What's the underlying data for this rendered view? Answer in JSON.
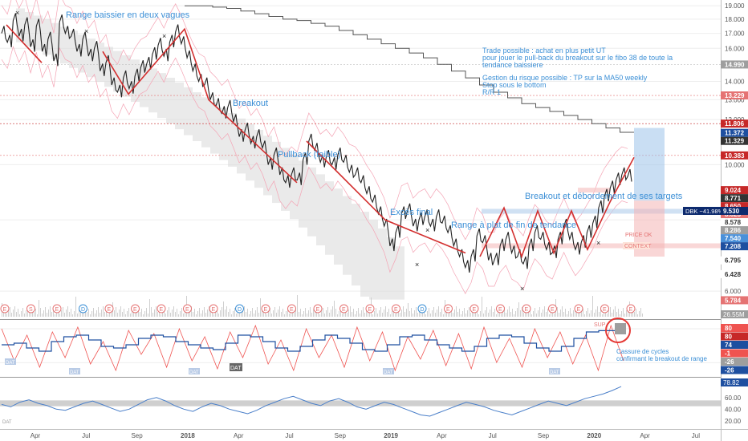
{
  "chart_data": [
    {
      "type": "line",
      "panel": "price",
      "series_name": "DBK",
      "change_label": "DBK −41.98%",
      "current_price": "9.530",
      "ylim": [
        5.5,
        19.2
      ],
      "yticks": [
        "19.000",
        "18.000",
        "17.000",
        "16.000",
        "14.000",
        "13.000",
        "12.000",
        "10.000",
        "8.000",
        "6.000"
      ],
      "x_labels": [
        "Apr",
        "Jul",
        "Sep",
        "2018",
        "Apr",
        "Jul",
        "Sep",
        "2019",
        "Apr",
        "Jul",
        "Sep",
        "2020",
        "Apr",
        "Jul"
      ],
      "price_tags": [
        {
          "label": "14.990",
          "color": "#9e9e9e",
          "value": 14.99
        },
        {
          "label": "13.229",
          "color": "#e57373",
          "value": 13.229
        },
        {
          "label": "11.806",
          "color": "#c62828",
          "value": 11.806
        },
        {
          "label": "11.372",
          "color": "#1e4fa0",
          "value": 11.372
        },
        {
          "label": "11.329",
          "color": "#333333",
          "value": 11.329
        },
        {
          "label": "10.383",
          "color": "#c62828",
          "value": 10.383
        },
        {
          "label": "9.024",
          "color": "#c62828",
          "value": 9.024
        },
        {
          "label": "8.771",
          "color": "#333333",
          "value": 8.771
        },
        {
          "label": "8.650",
          "color": "#c62828",
          "value": 8.65
        },
        {
          "label": "8.623",
          "color": "#e57373",
          "value": 8.623
        },
        {
          "label": "8.578",
          "color": "#ffffff",
          "value": 8.578
        },
        {
          "label": "8.286",
          "color": "#9e9e9e",
          "value": 8.286
        },
        {
          "label": "7.540",
          "color": "#4a90d9",
          "value": 7.54
        },
        {
          "label": "7.208",
          "color": "#1e4fa0",
          "value": 7.208
        },
        {
          "label": "6.795",
          "color": "#ffffff",
          "value": 6.795
        },
        {
          "label": "6.428",
          "color": "#ffffff",
          "value": 6.428
        },
        {
          "label": "5.784",
          "color": "#e57373",
          "value": 5.784
        }
      ],
      "volume_tag": "26.55M",
      "close_values": [
        17.0,
        16.4,
        17.9,
        16.8,
        17.6,
        16.1,
        17.5,
        15.8,
        16.6,
        15.2,
        17.8,
        17.0,
        16.8,
        15.8,
        16.6,
        15.5,
        16.0,
        14.6,
        15.1,
        13.8,
        13.4,
        14.2,
        13.6,
        14.3,
        14.8,
        15.0,
        15.6,
        16.2,
        15.5,
        16.4,
        17.1,
        16.3,
        15.4,
        14.6,
        14.0,
        13.8,
        13.0,
        12.7,
        12.3,
        12.6,
        11.9,
        11.2,
        11.5,
        10.9,
        11.2,
        10.7,
        10.0,
        10.4,
        9.6,
        9.3,
        9.6,
        9.4,
        10.2,
        11.0,
        10.6,
        10.1,
        10.3,
        10.0,
        10.4,
        10.1,
        9.7,
        9.6,
        9.3,
        8.9,
        8.6,
        8.2,
        7.8,
        7.2,
        7.6,
        8.2,
        8.3,
        7.8,
        8.0,
        8.1,
        7.8,
        8.1,
        7.9,
        7.6,
        7.2,
        6.9,
        6.6,
        6.9,
        7.5,
        7.3,
        6.8,
        6.8,
        7.2,
        7.4,
        7.0,
        6.9,
        6.7,
        7.2,
        7.6,
        7.4,
        7.1,
        7.0,
        7.4,
        7.8,
        7.4,
        7.1,
        7.3,
        7.6,
        7.9,
        8.4,
        8.8,
        9.1,
        9.4,
        9.6,
        9.53
      ],
      "ma_gray_values": [
        19.0,
        19.0,
        18.9,
        18.8,
        18.6,
        18.4,
        18.2,
        18.0,
        17.9,
        17.7,
        17.5,
        17.2,
        16.9,
        16.6,
        16.3,
        16.0,
        15.7,
        15.4,
        15.0,
        14.6,
        14.2,
        13.8,
        13.4,
        13.1,
        12.8,
        12.6,
        12.4,
        12.2,
        12.0,
        11.8,
        11.6,
        11.4
      ],
      "ma_start_index": 56,
      "projection_label": ""
    },
    {
      "type": "line",
      "panel": "oscillator",
      "tags": [
        {
          "label": "80",
          "color": "#ef5350"
        },
        {
          "label": "80",
          "color": "#c62828"
        },
        {
          "label": "74",
          "color": "#1e4fa0"
        },
        {
          "label": "-1",
          "color": "#ef5350"
        },
        {
          "label": "-26",
          "color": "#9e9e9e"
        },
        {
          "label": "-26",
          "color": "#1e4fa0"
        }
      ],
      "red_values": [
        80,
        -20,
        60,
        -40,
        70,
        -10,
        85,
        -30,
        40,
        -50,
        75,
        0,
        65,
        -40,
        80,
        -20,
        55,
        -45,
        70,
        -10,
        90,
        -30,
        45,
        -50,
        80,
        -10,
        60,
        -40,
        85,
        -20,
        70,
        -50,
        55,
        -15,
        75,
        -35,
        65,
        -45,
        85,
        -25,
        50,
        -40,
        80,
        -10,
        70,
        -30,
        60,
        -50,
        90,
        -20
      ],
      "blue_values": [
        30,
        35,
        20,
        10,
        40,
        55,
        60,
        45,
        25,
        20,
        30,
        50,
        60,
        55,
        40,
        30,
        20,
        15,
        35,
        60,
        55,
        40,
        20,
        10,
        25,
        45,
        60,
        50,
        35,
        15,
        10,
        30,
        55,
        60,
        45,
        30,
        20,
        10,
        25,
        50,
        60,
        55,
        35,
        20,
        10,
        25,
        50,
        70,
        74,
        74
      ]
    },
    {
      "type": "line",
      "panel": "rsi",
      "current_label": "78.82",
      "yticks": [
        "60.00",
        "40.00",
        "20.00"
      ],
      "band": [
        45,
        55
      ],
      "values": [
        48,
        44,
        52,
        56,
        50,
        46,
        40,
        38,
        44,
        50,
        54,
        48,
        42,
        36,
        40,
        48,
        56,
        60,
        54,
        46,
        40,
        36,
        44,
        50,
        46,
        40,
        36,
        32,
        38,
        46,
        52,
        58,
        62,
        56,
        50,
        46,
        54,
        58,
        52,
        44,
        40,
        46,
        52,
        48,
        42,
        36,
        30,
        28,
        34,
        40,
        46,
        52,
        48,
        44,
        38,
        34,
        30,
        36,
        42,
        48,
        54,
        50,
        46,
        52,
        58,
        62,
        66,
        72,
        78.82
      ]
    }
  ],
  "annotations": {
    "range_baissier": "Range baissier en deux vagues",
    "breakout": "Breakout",
    "pullback": "Pullback (faible)",
    "exces_final": "Excès final",
    "range_plat": "Range à plat de fin de tendance",
    "breakout_targets": "Breakout et débordement de ses targets",
    "trade_line1": "Trade possible : achat en plus petit UT",
    "trade_line2": "pour jouer le pull-back du breakout sur le fibo 38 de toute la",
    "trade_line3": "tendance baissiere",
    "risk_line1": "Gestion du risque possible : TP sur la MA50 weekly",
    "risk_line2": "Stop sous le bottom",
    "risk_line3": "R/R 1",
    "cassure_line1": "Cassure de cycles",
    "cassure_line2": "confirmant le breakout de range",
    "price_ok": "PRICE OK",
    "context": "CONTEXT",
    "osc_box1": "SUP",
    "osc_box2": "DAT",
    "osc_box3": "DAT",
    "osc_box4": "DAT",
    "osc_box5": "DAT",
    "osc_box6": "DAT",
    "osc_box7": "DAT",
    "rsi_box": "DAT"
  },
  "colors": {
    "price": "#222222",
    "trend": "#d32f2f",
    "cloud": "#d9d9d9",
    "ma_gray": "#555555",
    "accent_blue": "#3b8fd6",
    "osc_red": "#ef5350",
    "osc_blue": "#1e4fa0",
    "rsi_line": "#4a7fc9"
  },
  "event_markers": [
    "E",
    "S",
    "E",
    "D",
    "E",
    "E",
    "E",
    "E",
    "E",
    "D",
    "E",
    "E",
    "E",
    "E",
    "E",
    "E",
    "D",
    "E",
    "E",
    "E",
    "E",
    "E",
    "E",
    "E",
    "E"
  ]
}
